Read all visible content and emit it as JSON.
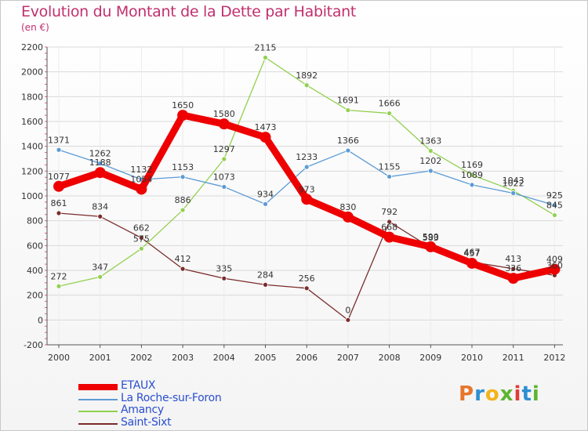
{
  "title": "Evolution du Montant de la Dette par Habitant",
  "unit_label": "(en €)",
  "logo": {
    "text": "Proxiti",
    "letters": [
      "P",
      "r",
      "o",
      "x",
      "i",
      "t",
      "i"
    ],
    "letter_colors": [
      "#e8762b",
      "#2c8fd3",
      "#f3b31a",
      "#5cb531",
      "#e23a3a",
      "#2c8fd3",
      "#5cb531"
    ]
  },
  "chart_data": {
    "type": "line",
    "title": "Evolution du Montant de la Dette par Habitant",
    "ylabel": "(en €)",
    "xlabel": "",
    "x": [
      "2000",
      "2001",
      "2002",
      "2003",
      "2004",
      "2005",
      "2006",
      "2007",
      "2008",
      "2009",
      "2010",
      "2011",
      "2012"
    ],
    "ylim": [
      -200,
      2200
    ],
    "yticks": [
      "-200",
      "0",
      "200",
      "400",
      "600",
      "800",
      "1000",
      "1200",
      "1400",
      "1600",
      "1800",
      "2000",
      "2200"
    ],
    "grid": true,
    "legend_position": "bottom-left",
    "series": [
      {
        "name": "ETAUX",
        "color": "#ee0000",
        "emphasis": true,
        "values": [
          1077,
          1188,
          1054,
          1650,
          1580,
          1473,
          973,
          830,
          668,
          590,
          457,
          336,
          409
        ]
      },
      {
        "name": "La Roche-sur-Foron",
        "color": "#5b9bd5",
        "values": [
          1371,
          1262,
          1132,
          1153,
          1073,
          934,
          1233,
          1366,
          1155,
          1202,
          1089,
          1022,
          925
        ]
      },
      {
        "name": "Amancy",
        "color": "#92d050",
        "values": [
          272,
          347,
          575,
          886,
          1297,
          2115,
          1892,
          1691,
          1666,
          1363,
          1169,
          1043,
          845
        ]
      },
      {
        "name": "Saint-Sixt",
        "color": "#7b2c2c",
        "values": [
          861,
          834,
          662,
          412,
          335,
          284,
          256,
          0,
          792,
          583,
          467,
          413,
          360
        ]
      }
    ]
  },
  "legend": {
    "items": [
      {
        "label": "ETAUX"
      },
      {
        "label": "La Roche-sur-Foron"
      },
      {
        "label": "Amancy"
      },
      {
        "label": "Saint-Sixt"
      }
    ]
  }
}
